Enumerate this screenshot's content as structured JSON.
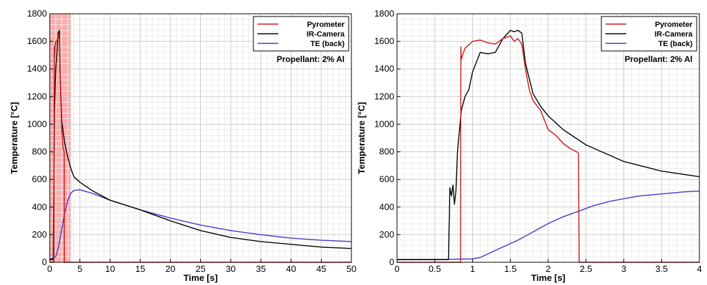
{
  "chart_data": [
    {
      "type": "line",
      "title": "",
      "xlabel": "Time [s]",
      "ylabel": "Temperature [°C]",
      "xlim": [
        0,
        50
      ],
      "ylim": [
        0,
        1800
      ],
      "xticks": [
        "0",
        "5",
        "10",
        "15",
        "20",
        "25",
        "30",
        "35",
        "40",
        "45",
        "50"
      ],
      "yticks": [
        "0",
        "200",
        "400",
        "600",
        "800",
        "1000",
        "1200",
        "1400",
        "1600",
        "1800"
      ],
      "grid": true,
      "legend_position": "top-right",
      "annotation": "Propellant: 2% Al",
      "highlight_region": {
        "x": [
          0,
          3.5
        ],
        "color": "#f6a0a0"
      },
      "series": [
        {
          "name": "Pyrometer",
          "color": "#cc1414",
          "x": [
            0,
            0.7,
            0.75,
            0.8,
            0.9,
            1.0,
            1.2,
            1.4,
            1.6,
            1.8,
            2.0,
            2.2,
            2.4,
            2.42,
            2.6,
            5,
            10,
            20,
            30,
            40,
            50
          ],
          "y": [
            0,
            0,
            1560,
            1480,
            1560,
            1600,
            1600,
            1640,
            1620,
            1240,
            960,
            830,
            800,
            0,
            0,
            0,
            0,
            0,
            0,
            0,
            0
          ]
        },
        {
          "name": "IR-Camera",
          "color": "#000000",
          "x": [
            0,
            0.6,
            0.7,
            0.8,
            1.0,
            1.2,
            1.4,
            1.6,
            1.7,
            2.0,
            2.5,
            3,
            3.5,
            4,
            5,
            7,
            10,
            15,
            20,
            25,
            30,
            35,
            40,
            45,
            50
          ],
          "y": [
            20,
            20,
            540,
            1100,
            1400,
            1520,
            1660,
            1680,
            1400,
            1020,
            860,
            760,
            680,
            620,
            580,
            520,
            450,
            380,
            300,
            230,
            180,
            150,
            130,
            110,
            100
          ]
        },
        {
          "name": "TE (back)",
          "color": "#3a3acc",
          "x": [
            0,
            1,
            1.5,
            2,
            2.5,
            3,
            3.5,
            4,
            5,
            7,
            10,
            15,
            20,
            25,
            30,
            35,
            40,
            45,
            50
          ],
          "y": [
            20,
            40,
            120,
            240,
            360,
            450,
            500,
            520,
            525,
            500,
            450,
            380,
            320,
            270,
            230,
            200,
            175,
            160,
            150
          ]
        }
      ]
    },
    {
      "type": "line",
      "title": "",
      "xlabel": "Time [s]",
      "ylabel": "Temperature [°C]",
      "xlim": [
        0,
        4
      ],
      "ylim": [
        0,
        1800
      ],
      "xticks": [
        "0",
        "0.5",
        "1",
        "1.5",
        "2",
        "2.5",
        "3",
        "3.5",
        "4"
      ],
      "yticks": [
        "0",
        "200",
        "400",
        "600",
        "800",
        "1000",
        "1200",
        "1400",
        "1600",
        "1800"
      ],
      "grid": true,
      "legend_position": "top-right",
      "annotation": "Propellant: 2% Al",
      "series": [
        {
          "name": "Pyrometer",
          "color": "#cc1414",
          "x": [
            0,
            0.84,
            0.845,
            0.85,
            0.88,
            0.9,
            1.0,
            1.1,
            1.2,
            1.3,
            1.4,
            1.5,
            1.55,
            1.6,
            1.65,
            1.7,
            1.75,
            1.8,
            1.9,
            2.0,
            2.1,
            2.2,
            2.3,
            2.38,
            2.4,
            2.41,
            2.5,
            3,
            4
          ],
          "y": [
            0,
            0,
            1560,
            1470,
            1520,
            1550,
            1600,
            1610,
            1590,
            1580,
            1620,
            1640,
            1600,
            1620,
            1580,
            1400,
            1250,
            1170,
            1100,
            960,
            920,
            860,
            820,
            800,
            790,
            0,
            0,
            0,
            0
          ]
        },
        {
          "name": "IR-Camera",
          "color": "#000000",
          "x": [
            0,
            0.68,
            0.7,
            0.72,
            0.74,
            0.76,
            0.78,
            0.8,
            0.85,
            0.9,
            0.95,
            1.0,
            1.05,
            1.1,
            1.2,
            1.3,
            1.4,
            1.45,
            1.5,
            1.55,
            1.6,
            1.65,
            1.7,
            1.8,
            1.9,
            2.0,
            2.2,
            2.5,
            3.0,
            3.5,
            4.0
          ],
          "y": [
            20,
            20,
            540,
            480,
            560,
            420,
            520,
            800,
            1100,
            1200,
            1250,
            1380,
            1450,
            1520,
            1510,
            1520,
            1620,
            1650,
            1680,
            1670,
            1680,
            1660,
            1440,
            1220,
            1130,
            1060,
            960,
            850,
            730,
            660,
            620
          ]
        },
        {
          "name": "TE (back)",
          "color": "#3a3acc",
          "x": [
            0,
            0.5,
            1.0,
            1.1,
            1.2,
            1.4,
            1.6,
            1.8,
            2.0,
            2.2,
            2.4,
            2.6,
            2.8,
            3.0,
            3.2,
            3.5,
            3.8,
            4.0
          ],
          "y": [
            20,
            20,
            25,
            35,
            60,
            110,
            160,
            220,
            280,
            330,
            370,
            410,
            440,
            460,
            480,
            495,
            510,
            515
          ]
        }
      ]
    }
  ]
}
